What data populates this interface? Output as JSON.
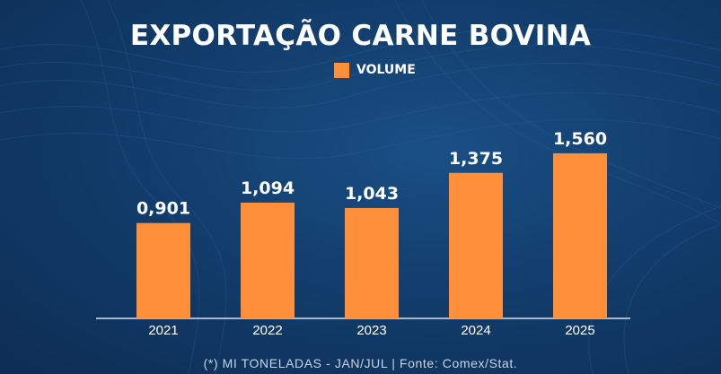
{
  "colors": {
    "bar": "#ff8f3a",
    "text": "#ffffff",
    "background": "#123d6c",
    "baseline": "#d8e2ee"
  },
  "chart_data": {
    "type": "bar",
    "title": "EXPORTAÇÃO CARNE BOVINA",
    "legend": [
      "VOLUME"
    ],
    "legend_position": "top-center",
    "categories": [
      "2021",
      "2022",
      "2023",
      "2024",
      "2025"
    ],
    "series": [
      {
        "name": "VOLUME",
        "values": [
          0.901,
          1.094,
          1.043,
          1.375,
          1.56
        ]
      }
    ],
    "value_labels": [
      "0,901",
      "1,094",
      "1,043",
      "1,375",
      "1,560"
    ],
    "ylim": [
      0,
      2.0
    ],
    "grid": false,
    "footnote": "(*) MI TONELADAS - JAN/JUL | Fonte: Comex/Stat."
  }
}
